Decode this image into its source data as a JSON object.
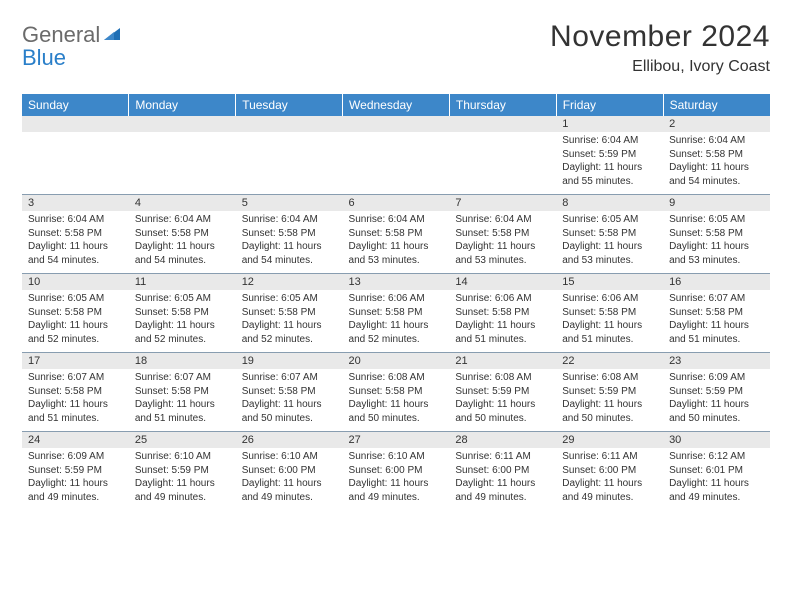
{
  "logo": {
    "general": "General",
    "blue": "Blue"
  },
  "title": "November 2024",
  "location": "Ellibou, Ivory Coast",
  "colors": {
    "header_bg": "#3d87c9",
    "header_text": "#ffffff",
    "daynum_bg": "#e9e9e9",
    "cell_border": "#889db0",
    "body_text": "#333333",
    "logo_gray": "#6b6b6b",
    "logo_blue": "#2a7fc9"
  },
  "day_names": [
    "Sunday",
    "Monday",
    "Tuesday",
    "Wednesday",
    "Thursday",
    "Friday",
    "Saturday"
  ],
  "weeks": [
    {
      "nums": [
        "",
        "",
        "",
        "",
        "",
        "1",
        "2"
      ],
      "cells": [
        null,
        null,
        null,
        null,
        null,
        {
          "sunrise": "Sunrise: 6:04 AM",
          "sunset": "Sunset: 5:59 PM",
          "day1": "Daylight: 11 hours",
          "day2": "and 55 minutes."
        },
        {
          "sunrise": "Sunrise: 6:04 AM",
          "sunset": "Sunset: 5:58 PM",
          "day1": "Daylight: 11 hours",
          "day2": "and 54 minutes."
        }
      ]
    },
    {
      "nums": [
        "3",
        "4",
        "5",
        "6",
        "7",
        "8",
        "9"
      ],
      "cells": [
        {
          "sunrise": "Sunrise: 6:04 AM",
          "sunset": "Sunset: 5:58 PM",
          "day1": "Daylight: 11 hours",
          "day2": "and 54 minutes."
        },
        {
          "sunrise": "Sunrise: 6:04 AM",
          "sunset": "Sunset: 5:58 PM",
          "day1": "Daylight: 11 hours",
          "day2": "and 54 minutes."
        },
        {
          "sunrise": "Sunrise: 6:04 AM",
          "sunset": "Sunset: 5:58 PM",
          "day1": "Daylight: 11 hours",
          "day2": "and 54 minutes."
        },
        {
          "sunrise": "Sunrise: 6:04 AM",
          "sunset": "Sunset: 5:58 PM",
          "day1": "Daylight: 11 hours",
          "day2": "and 53 minutes."
        },
        {
          "sunrise": "Sunrise: 6:04 AM",
          "sunset": "Sunset: 5:58 PM",
          "day1": "Daylight: 11 hours",
          "day2": "and 53 minutes."
        },
        {
          "sunrise": "Sunrise: 6:05 AM",
          "sunset": "Sunset: 5:58 PM",
          "day1": "Daylight: 11 hours",
          "day2": "and 53 minutes."
        },
        {
          "sunrise": "Sunrise: 6:05 AM",
          "sunset": "Sunset: 5:58 PM",
          "day1": "Daylight: 11 hours",
          "day2": "and 53 minutes."
        }
      ]
    },
    {
      "nums": [
        "10",
        "11",
        "12",
        "13",
        "14",
        "15",
        "16"
      ],
      "cells": [
        {
          "sunrise": "Sunrise: 6:05 AM",
          "sunset": "Sunset: 5:58 PM",
          "day1": "Daylight: 11 hours",
          "day2": "and 52 minutes."
        },
        {
          "sunrise": "Sunrise: 6:05 AM",
          "sunset": "Sunset: 5:58 PM",
          "day1": "Daylight: 11 hours",
          "day2": "and 52 minutes."
        },
        {
          "sunrise": "Sunrise: 6:05 AM",
          "sunset": "Sunset: 5:58 PM",
          "day1": "Daylight: 11 hours",
          "day2": "and 52 minutes."
        },
        {
          "sunrise": "Sunrise: 6:06 AM",
          "sunset": "Sunset: 5:58 PM",
          "day1": "Daylight: 11 hours",
          "day2": "and 52 minutes."
        },
        {
          "sunrise": "Sunrise: 6:06 AM",
          "sunset": "Sunset: 5:58 PM",
          "day1": "Daylight: 11 hours",
          "day2": "and 51 minutes."
        },
        {
          "sunrise": "Sunrise: 6:06 AM",
          "sunset": "Sunset: 5:58 PM",
          "day1": "Daylight: 11 hours",
          "day2": "and 51 minutes."
        },
        {
          "sunrise": "Sunrise: 6:07 AM",
          "sunset": "Sunset: 5:58 PM",
          "day1": "Daylight: 11 hours",
          "day2": "and 51 minutes."
        }
      ]
    },
    {
      "nums": [
        "17",
        "18",
        "19",
        "20",
        "21",
        "22",
        "23"
      ],
      "cells": [
        {
          "sunrise": "Sunrise: 6:07 AM",
          "sunset": "Sunset: 5:58 PM",
          "day1": "Daylight: 11 hours",
          "day2": "and 51 minutes."
        },
        {
          "sunrise": "Sunrise: 6:07 AM",
          "sunset": "Sunset: 5:58 PM",
          "day1": "Daylight: 11 hours",
          "day2": "and 51 minutes."
        },
        {
          "sunrise": "Sunrise: 6:07 AM",
          "sunset": "Sunset: 5:58 PM",
          "day1": "Daylight: 11 hours",
          "day2": "and 50 minutes."
        },
        {
          "sunrise": "Sunrise: 6:08 AM",
          "sunset": "Sunset: 5:58 PM",
          "day1": "Daylight: 11 hours",
          "day2": "and 50 minutes."
        },
        {
          "sunrise": "Sunrise: 6:08 AM",
          "sunset": "Sunset: 5:59 PM",
          "day1": "Daylight: 11 hours",
          "day2": "and 50 minutes."
        },
        {
          "sunrise": "Sunrise: 6:08 AM",
          "sunset": "Sunset: 5:59 PM",
          "day1": "Daylight: 11 hours",
          "day2": "and 50 minutes."
        },
        {
          "sunrise": "Sunrise: 6:09 AM",
          "sunset": "Sunset: 5:59 PM",
          "day1": "Daylight: 11 hours",
          "day2": "and 50 minutes."
        }
      ]
    },
    {
      "nums": [
        "24",
        "25",
        "26",
        "27",
        "28",
        "29",
        "30"
      ],
      "cells": [
        {
          "sunrise": "Sunrise: 6:09 AM",
          "sunset": "Sunset: 5:59 PM",
          "day1": "Daylight: 11 hours",
          "day2": "and 49 minutes."
        },
        {
          "sunrise": "Sunrise: 6:10 AM",
          "sunset": "Sunset: 5:59 PM",
          "day1": "Daylight: 11 hours",
          "day2": "and 49 minutes."
        },
        {
          "sunrise": "Sunrise: 6:10 AM",
          "sunset": "Sunset: 6:00 PM",
          "day1": "Daylight: 11 hours",
          "day2": "and 49 minutes."
        },
        {
          "sunrise": "Sunrise: 6:10 AM",
          "sunset": "Sunset: 6:00 PM",
          "day1": "Daylight: 11 hours",
          "day2": "and 49 minutes."
        },
        {
          "sunrise": "Sunrise: 6:11 AM",
          "sunset": "Sunset: 6:00 PM",
          "day1": "Daylight: 11 hours",
          "day2": "and 49 minutes."
        },
        {
          "sunrise": "Sunrise: 6:11 AM",
          "sunset": "Sunset: 6:00 PM",
          "day1": "Daylight: 11 hours",
          "day2": "and 49 minutes."
        },
        {
          "sunrise": "Sunrise: 6:12 AM",
          "sunset": "Sunset: 6:01 PM",
          "day1": "Daylight: 11 hours",
          "day2": "and 49 minutes."
        }
      ]
    }
  ]
}
